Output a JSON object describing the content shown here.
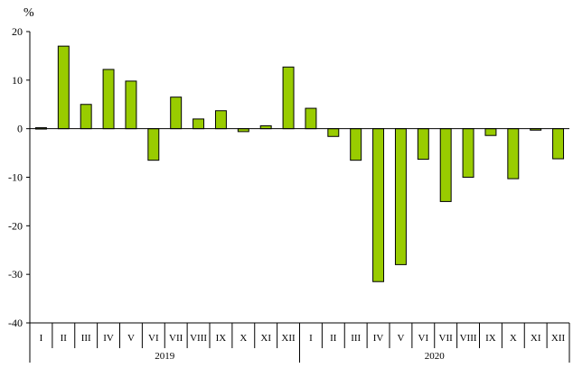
{
  "chart_data": {
    "type": "bar",
    "ylabel": "%",
    "ylim": [
      -40,
      20
    ],
    "yticks": [
      20,
      10,
      0,
      -10,
      -20,
      -30,
      -40
    ],
    "grid": false,
    "bar_color": "#99CC00",
    "bar_edge_color": "#000000",
    "groups": [
      {
        "label": "2019",
        "categories": [
          "I",
          "II",
          "III",
          "IV",
          "V",
          "VI",
          "VII",
          "VIII",
          "IX",
          "X",
          "XI",
          "XII"
        ]
      },
      {
        "label": "2020",
        "categories": [
          "I",
          "II",
          "III",
          "IV",
          "V",
          "VI",
          "VII",
          "VIII",
          "IX",
          "X",
          "XI",
          "XII"
        ]
      }
    ],
    "values": [
      0.2,
      17.0,
      5.0,
      12.2,
      9.8,
      -6.5,
      6.5,
      2.0,
      3.7,
      -0.6,
      0.6,
      12.7,
      4.2,
      -1.6,
      -6.5,
      -31.5,
      -28.0,
      -6.3,
      -15.0,
      -10.0,
      -1.4,
      -10.3,
      -0.3,
      -6.2
    ]
  }
}
